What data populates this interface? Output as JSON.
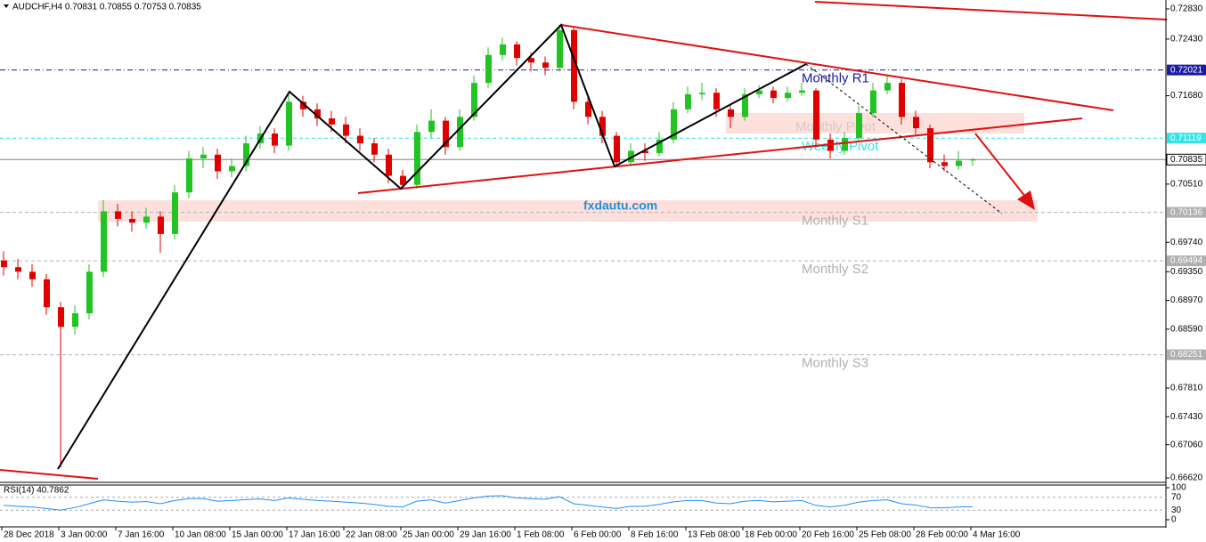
{
  "chart_data": {
    "type": "candlestick",
    "title": "AUDCHF,H4  0.70831 0.70855 0.70753 0.70835",
    "categories": [
      "28 Dec 2018",
      null,
      null,
      null,
      "3 Jan 00:00",
      null,
      null,
      null,
      "7 Jan 16:00",
      null,
      null,
      null,
      "10 Jan 08:00",
      null,
      null,
      null,
      "15 Jan 00:00",
      null,
      null,
      null,
      "17 Jan 16:00",
      null,
      null,
      null,
      "22 Jan 08:00",
      null,
      null,
      null,
      "25 Jan 00:00",
      null,
      null,
      null,
      "29 Jan 16:00",
      null,
      null,
      null,
      "1 Feb 08:00",
      null,
      null,
      null,
      "6 Feb 00:00",
      null,
      null,
      null,
      "8 Feb 16:00",
      null,
      null,
      null,
      "13 Feb 08:00",
      null,
      null,
      null,
      "18 Feb 00:00",
      null,
      null,
      null,
      "20 Feb 16:00",
      null,
      null,
      null,
      "25 Feb 08:00",
      null,
      null,
      null,
      "28 Feb 00:00",
      null,
      null,
      null,
      "4 Mar 16:00"
    ],
    "open": [
      0.695,
      0.6941,
      0.6935,
      0.6925,
      0.6888,
      0.6862,
      0.688,
      0.6935,
      0.7015,
      0.7005,
      0.7,
      0.7008,
      0.6985,
      0.704,
      0.7085,
      0.709,
      0.7068,
      0.7075,
      0.7105,
      0.7118,
      0.7102,
      0.716,
      0.715,
      0.7138,
      0.713,
      0.7115,
      0.7105,
      0.709,
      0.7062,
      0.705,
      0.712,
      0.7135,
      0.71,
      0.714,
      0.7185,
      0.7222,
      0.7236,
      0.7218,
      0.7212,
      0.7205,
      0.7255,
      0.716,
      0.714,
      0.7115,
      0.708,
      0.7095,
      0.7092,
      0.711,
      0.715,
      0.717,
      0.7172,
      0.715,
      0.714,
      0.717,
      0.7175,
      0.7165,
      0.7172,
      0.7175,
      0.711,
      0.7095,
      0.7112,
      0.7145,
      0.7175,
      0.7185,
      0.714,
      0.7125,
      0.708,
      0.7075,
      0.70831
    ],
    "high": [
      0.6962,
      0.6952,
      0.6945,
      0.6932,
      0.6895,
      0.689,
      0.6945,
      0.703,
      0.7025,
      0.7015,
      0.702,
      0.7015,
      0.705,
      0.7095,
      0.71,
      0.7098,
      0.7085,
      0.7115,
      0.7128,
      0.7125,
      0.7172,
      0.7168,
      0.7158,
      0.7148,
      0.714,
      0.7125,
      0.7112,
      0.7098,
      0.707,
      0.713,
      0.715,
      0.714,
      0.715,
      0.7195,
      0.7232,
      0.7245,
      0.724,
      0.7225,
      0.722,
      0.7262,
      0.7258,
      0.7168,
      0.7148,
      0.712,
      0.7105,
      0.7105,
      0.712,
      0.716,
      0.718,
      0.7185,
      0.7178,
      0.7155,
      0.7178,
      0.7182,
      0.718,
      0.718,
      0.7185,
      0.7178,
      0.7118,
      0.712,
      0.7155,
      0.7185,
      0.7195,
      0.719,
      0.7148,
      0.713,
      0.709,
      0.7095,
      0.70855
    ],
    "low": [
      0.693,
      0.6925,
      0.6915,
      0.6878,
      0.6676,
      0.6852,
      0.6872,
      0.6928,
      0.6995,
      0.6988,
      0.6992,
      0.696,
      0.6978,
      0.7032,
      0.7072,
      0.7058,
      0.706,
      0.7068,
      0.7098,
      0.7092,
      0.7095,
      0.714,
      0.7128,
      0.712,
      0.7105,
      0.7095,
      0.708,
      0.7052,
      0.7045,
      0.7045,
      0.7112,
      0.709,
      0.7095,
      0.7135,
      0.7178,
      0.7215,
      0.7208,
      0.72,
      0.7195,
      0.72,
      0.715,
      0.713,
      0.7105,
      0.7075,
      0.7075,
      0.7082,
      0.7088,
      0.7105,
      0.7145,
      0.7162,
      0.714,
      0.7125,
      0.7135,
      0.7165,
      0.7158,
      0.716,
      0.7168,
      0.71,
      0.7085,
      0.709,
      0.7108,
      0.714,
      0.717,
      0.713,
      0.7115,
      0.7072,
      0.7068,
      0.707,
      0.70753
    ],
    "close": [
      0.6941,
      0.6935,
      0.6925,
      0.6888,
      0.6862,
      0.688,
      0.6935,
      0.7015,
      0.7005,
      0.7,
      0.7008,
      0.6985,
      0.704,
      0.7085,
      0.709,
      0.7068,
      0.7075,
      0.7105,
      0.7118,
      0.7102,
      0.716,
      0.715,
      0.7138,
      0.713,
      0.7115,
      0.7105,
      0.709,
      0.7062,
      0.705,
      0.712,
      0.7135,
      0.71,
      0.714,
      0.7185,
      0.7222,
      0.7236,
      0.7218,
      0.7212,
      0.7205,
      0.7255,
      0.716,
      0.714,
      0.7115,
      0.708,
      0.7095,
      0.7092,
      0.711,
      0.715,
      0.717,
      0.7172,
      0.715,
      0.714,
      0.717,
      0.7175,
      0.7165,
      0.7172,
      0.7175,
      0.711,
      0.7095,
      0.7112,
      0.7145,
      0.7175,
      0.7185,
      0.714,
      0.7125,
      0.708,
      0.7075,
      0.7082,
      0.70835
    ],
    "up_color": "#22c322",
    "down_color": "#e00000",
    "ylim": [
      0.66585,
      0.72924
    ],
    "yticks": [
      {
        "value": 0.7283,
        "label": "0.72830"
      },
      {
        "value": 0.7243,
        "label": "0.72430"
      },
      {
        "value": 0.7168,
        "label": "0.71680"
      },
      {
        "value": 0.7051,
        "label": "0.70510"
      },
      {
        "value": 0.6974,
        "label": "0.69740"
      },
      {
        "value": 0.6935,
        "label": "0.69350"
      },
      {
        "value": 0.6897,
        "label": "0.68970"
      },
      {
        "value": 0.6859,
        "label": "0.68590"
      },
      {
        "value": 0.6781,
        "label": "0.67810"
      },
      {
        "value": 0.6743,
        "label": "0.67430"
      },
      {
        "value": 0.6706,
        "label": "0.67060"
      },
      {
        "value": 0.6662,
        "label": "0.66620"
      }
    ],
    "levels": [
      {
        "name": "Monthly R1",
        "value": 0.72021,
        "color": "#1a1aa6",
        "style": "dashdot"
      },
      {
        "name": "Weekly Pivot",
        "value": 0.71119,
        "color": "#2ee6e6",
        "style": "dashed"
      },
      {
        "value": 0.70835,
        "color": "#808080",
        "style": "solid"
      },
      {
        "name": "Monthly S1",
        "value": 0.70136,
        "color": "#b0b0b0",
        "style": "dashed"
      },
      {
        "name": "Monthly S2",
        "value": 0.69494,
        "color": "#b0b0b0",
        "style": "dashed"
      },
      {
        "name": "Monthly S3",
        "value": 0.68251,
        "color": "#b0b0b0",
        "style": "dashed"
      }
    ],
    "annotations": {
      "watermark": "fxdautu.com",
      "monthly_pivot": "Monthly Pivot"
    },
    "rsi": {
      "title": "RSI(14) 40.7862",
      "color": "#1e90ff",
      "ylim": [
        0,
        100
      ],
      "yticks": [
        100,
        70,
        30,
        0
      ],
      "values": [
        45,
        42,
        40,
        35,
        30,
        38,
        50,
        62,
        58,
        55,
        57,
        50,
        60,
        66,
        66,
        58,
        60,
        63,
        65,
        60,
        68,
        64,
        60,
        58,
        55,
        52,
        48,
        42,
        40,
        58,
        62,
        52,
        60,
        68,
        74,
        75,
        68,
        66,
        64,
        72,
        50,
        45,
        40,
        35,
        42,
        42,
        48,
        56,
        60,
        60,
        52,
        50,
        58,
        60,
        56,
        58,
        60,
        45,
        40,
        45,
        55,
        60,
        62,
        50,
        46,
        38,
        37,
        40,
        40.7862
      ]
    }
  }
}
